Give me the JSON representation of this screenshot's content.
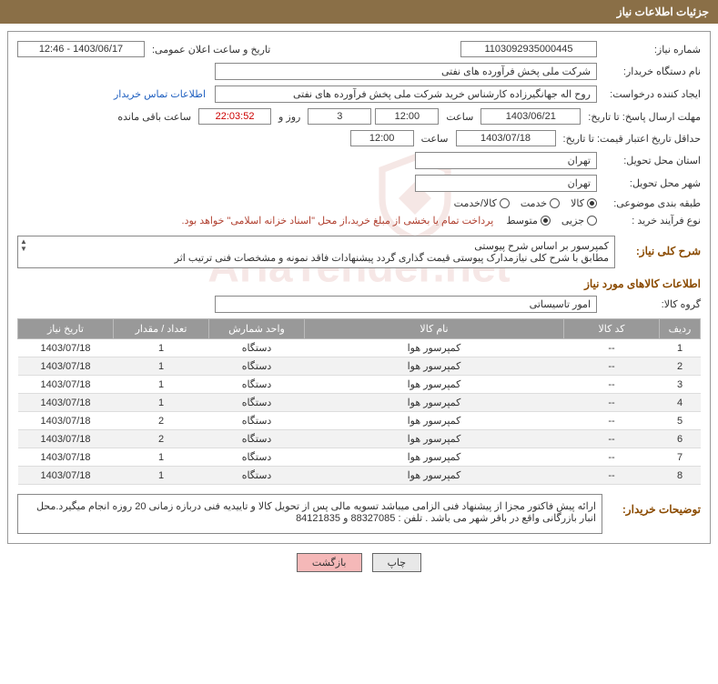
{
  "header": {
    "title": "جزئیات اطلاعات نیاز"
  },
  "watermark": "AriaTender.net",
  "need": {
    "number_label": "شماره نیاز:",
    "number": "1103092935000445",
    "announce_label": "تاریخ و ساعت اعلان عمومی:",
    "announce": "1403/06/17 - 12:46",
    "buyer_org_label": "نام دستگاه خریدار:",
    "buyer_org": "شرکت ملی پخش فرآورده های نفتی",
    "requester_label": "ایجاد کننده درخواست:",
    "requester": "روح اله جهانگیرزاده کارشناس خرید شرکت ملی پخش فرآورده های نفتی",
    "contact_link": "اطلاعات تماس خریدار",
    "deadline_label": "مهلت ارسال پاسخ: تا تاریخ:",
    "deadline_date": "1403/06/21",
    "time_label": "ساعت",
    "deadline_time": "12:00",
    "days_remaining": "3",
    "days_label": "روز و",
    "countdown": "22:03:52",
    "remaining_label": "ساعت باقی مانده",
    "validity_label": "حداقل تاریخ اعتبار قیمت: تا تاریخ:",
    "validity_date": "1403/07/18",
    "validity_time": "12:00",
    "province_label": "استان محل تحویل:",
    "province": "تهران",
    "city_label": "شهر محل تحویل:",
    "city": "تهران",
    "category_label": "طبقه بندی موضوعی:",
    "category_options": [
      "کالا",
      "خدمت",
      "کالا/خدمت"
    ],
    "category_selected": 0,
    "purchase_type_label": "نوع فرآیند خرید :",
    "purchase_options": [
      "جزیی",
      "متوسط"
    ],
    "purchase_selected": 1,
    "payment_note": "پرداخت تمام یا بخشی از مبلغ خرید،از محل \"اسناد خزانه اسلامی\" خواهد بود."
  },
  "description": {
    "label": "شرح کلی نیاز:",
    "text": "کمپرسور بر اساس شرح پیوستی\nمطابق با شرح کلی نیازمدارک پیوستی قیمت گذاری گردد پیشنهادات فاقد نمونه و مشخصات فنی ترتیب اثر"
  },
  "goods": {
    "section_title": "اطلاعات کالاهای مورد نیاز",
    "group_label": "گروه کالا:",
    "group": "امور تاسیساتی",
    "columns": [
      "ردیف",
      "کد کالا",
      "نام کالا",
      "واحد شمارش",
      "تعداد / مقدار",
      "تاریخ نیاز"
    ],
    "rows": [
      [
        "1",
        "--",
        "کمپرسور هوا",
        "دستگاه",
        "1",
        "1403/07/18"
      ],
      [
        "2",
        "--",
        "کمپرسور هوا",
        "دستگاه",
        "1",
        "1403/07/18"
      ],
      [
        "3",
        "--",
        "کمپرسور هوا",
        "دستگاه",
        "1",
        "1403/07/18"
      ],
      [
        "4",
        "--",
        "کمپرسور هوا",
        "دستگاه",
        "1",
        "1403/07/18"
      ],
      [
        "5",
        "--",
        "کمپرسور هوا",
        "دستگاه",
        "2",
        "1403/07/18"
      ],
      [
        "6",
        "--",
        "کمپرسور هوا",
        "دستگاه",
        "2",
        "1403/07/18"
      ],
      [
        "7",
        "--",
        "کمپرسور هوا",
        "دستگاه",
        "1",
        "1403/07/18"
      ],
      [
        "8",
        "--",
        "کمپرسور هوا",
        "دستگاه",
        "1",
        "1403/07/18"
      ]
    ]
  },
  "buyer_notes": {
    "label": "توضیحات خریدار:",
    "text": "ارائه پیش فاکتور مجزا از پیشنهاد فنی الزامی میباشد تسویه مالی پس از تحویل کالا و تاییدیه فنی دربازه زمانی 20 روزه انجام میگیرد.محل انبار بازرگانی واقع در باقر شهر می باشد . تلفن : 88327085 و 84121835"
  },
  "buttons": {
    "print": "چاپ",
    "back": "بازگشت"
  },
  "colors": {
    "header_bg": "#8a6f47",
    "section_title": "#8a4a00",
    "note_text": "#b04030",
    "link": "#2060c0",
    "th_bg": "#999999",
    "btn_back_bg": "#f5b8b8"
  }
}
